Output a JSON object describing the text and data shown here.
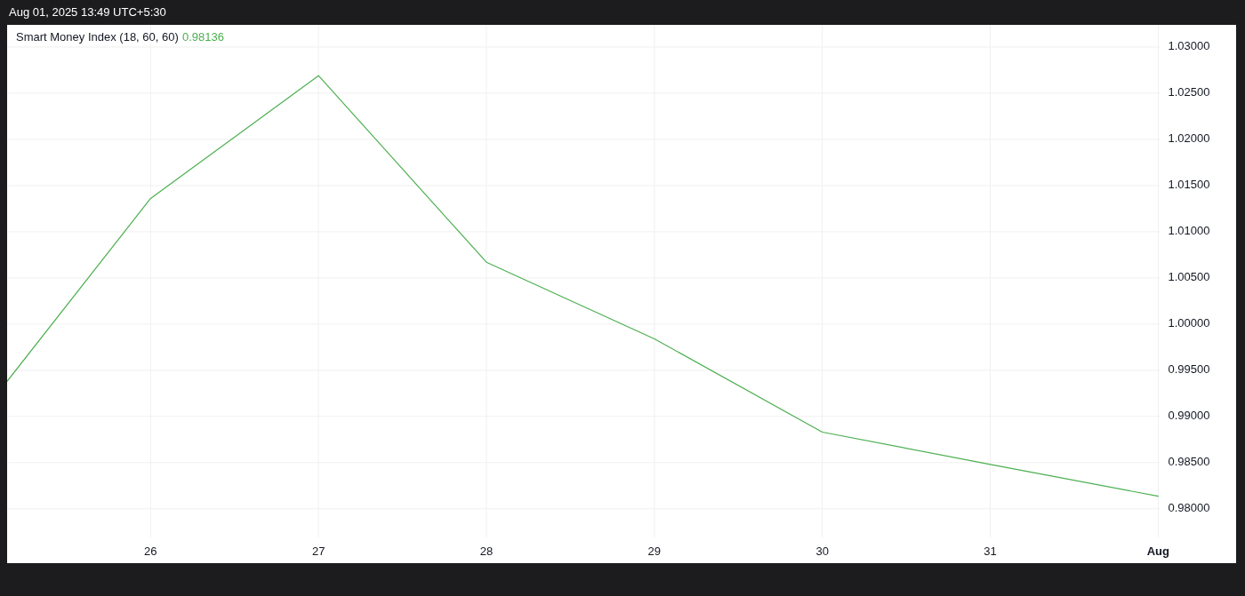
{
  "chart_data": {
    "type": "line",
    "title": "Smart Money Index (18, 60, 60)",
    "annotations": [
      "Aug 01, 2025 13:49 UTC+5:30",
      "0.98136"
    ],
    "x": [
      "2025-07-25T03:30",
      "2025-07-26",
      "2025-07-27",
      "2025-07-28",
      "2025-07-29",
      "2025-07-30",
      "2025-07-31",
      "2025-08-01"
    ],
    "series": [
      {
        "color": "#4caf50",
        "values": [
          0.9938,
          1.0136,
          1.0269,
          1.0067,
          0.9984,
          0.9883,
          0.9848,
          0.98136
        ]
      }
    ],
    "xlim": [
      "2025-07-25T03:30",
      "2025-08-01T00:20"
    ],
    "xticks": [
      {
        "value": "2025-07-26",
        "label": "26"
      },
      {
        "value": "2025-07-27",
        "label": "27"
      },
      {
        "value": "2025-07-28",
        "label": "28"
      },
      {
        "value": "2025-07-29",
        "label": "29"
      },
      {
        "value": "2025-07-30",
        "label": "30"
      },
      {
        "value": "2025-07-31",
        "label": "31"
      },
      {
        "value": "2025-08-01",
        "label": "Aug"
      }
    ],
    "ylim": [
      0.9769,
      1.0324
    ],
    "yticks": [
      {
        "value": 0.98,
        "label": "0.98000"
      },
      {
        "value": 0.985,
        "label": "0.98500"
      },
      {
        "value": 0.99,
        "label": "0.99000"
      },
      {
        "value": 0.995,
        "label": "0.99500"
      },
      {
        "value": 1.0,
        "label": "1.00000"
      },
      {
        "value": 1.005,
        "label": "1.00500"
      },
      {
        "value": 1.01,
        "label": "1.01000"
      },
      {
        "value": 1.015,
        "label": "1.01500"
      },
      {
        "value": 1.02,
        "label": "1.02000"
      },
      {
        "value": 1.025,
        "label": "1.02500"
      },
      {
        "value": 1.03,
        "label": "1.03000"
      }
    ],
    "grid": true
  }
}
